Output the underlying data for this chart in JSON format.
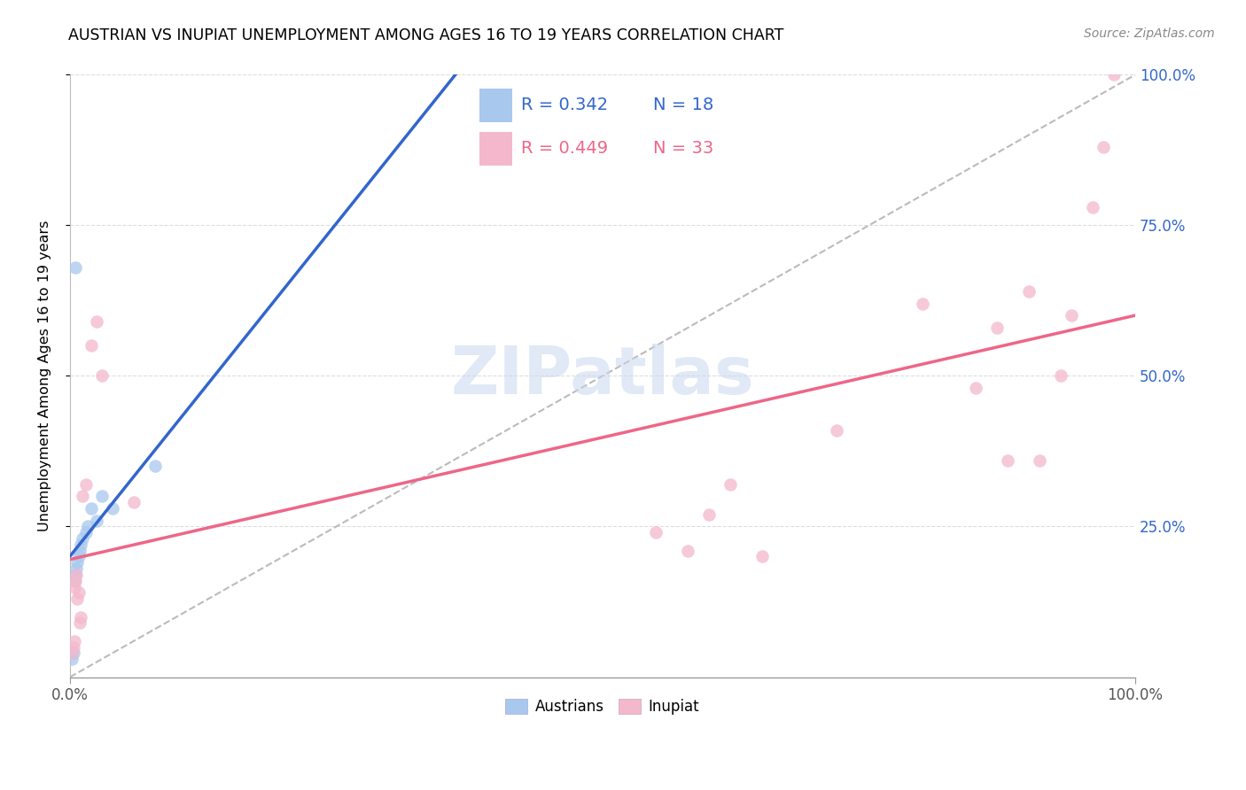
{
  "title": "AUSTRIAN VS INUPIAT UNEMPLOYMENT AMONG AGES 16 TO 19 YEARS CORRELATION CHART",
  "source": "Source: ZipAtlas.com",
  "ylabel": "Unemployment Among Ages 16 to 19 years",
  "r_austrian": 0.342,
  "n_austrian": 18,
  "r_inupiat": 0.449,
  "n_inupiat": 33,
  "austrian_color": "#A8C8EE",
  "inupiat_color": "#F4B8CC",
  "trend_austrian_color": "#3366CC",
  "trend_inupiat_color": "#EE6688",
  "watermark_color": "#C8D8EE",
  "austrian_x": [
    0.002,
    0.003,
    0.004,
    0.005,
    0.006,
    0.007,
    0.008,
    0.009,
    0.01,
    0.012,
    0.015,
    0.017,
    0.02,
    0.025,
    0.03,
    0.04,
    0.08,
    0.005
  ],
  "austrian_y": [
    0.03,
    0.04,
    0.16,
    0.17,
    0.18,
    0.19,
    0.2,
    0.21,
    0.22,
    0.23,
    0.24,
    0.25,
    0.28,
    0.26,
    0.3,
    0.28,
    0.35,
    0.68
  ],
  "inupiat_x": [
    0.002,
    0.003,
    0.004,
    0.004,
    0.005,
    0.006,
    0.007,
    0.008,
    0.009,
    0.01,
    0.012,
    0.015,
    0.02,
    0.025,
    0.03,
    0.06,
    0.55,
    0.58,
    0.6,
    0.62,
    0.65,
    0.72,
    0.8,
    0.85,
    0.87,
    0.88,
    0.9,
    0.91,
    0.93,
    0.94,
    0.96,
    0.97,
    0.98
  ],
  "inupiat_y": [
    0.04,
    0.05,
    0.06,
    0.15,
    0.16,
    0.17,
    0.13,
    0.14,
    0.09,
    0.1,
    0.3,
    0.32,
    0.55,
    0.59,
    0.5,
    0.29,
    0.24,
    0.21,
    0.27,
    0.32,
    0.2,
    0.41,
    0.62,
    0.48,
    0.58,
    0.36,
    0.64,
    0.36,
    0.5,
    0.6,
    0.78,
    0.88,
    1.0
  ],
  "xlim": [
    0.0,
    1.0
  ],
  "ylim": [
    0.0,
    1.0
  ],
  "xtick_left_label": "0.0%",
  "xtick_right_label": "100.0%",
  "yticks": [
    0.25,
    0.5,
    0.75,
    1.0
  ],
  "ytick_labels": [
    "25.0%",
    "50.0%",
    "75.0%",
    "100.0%"
  ],
  "marker_size": 110,
  "grid_color": "#DDDDDD"
}
